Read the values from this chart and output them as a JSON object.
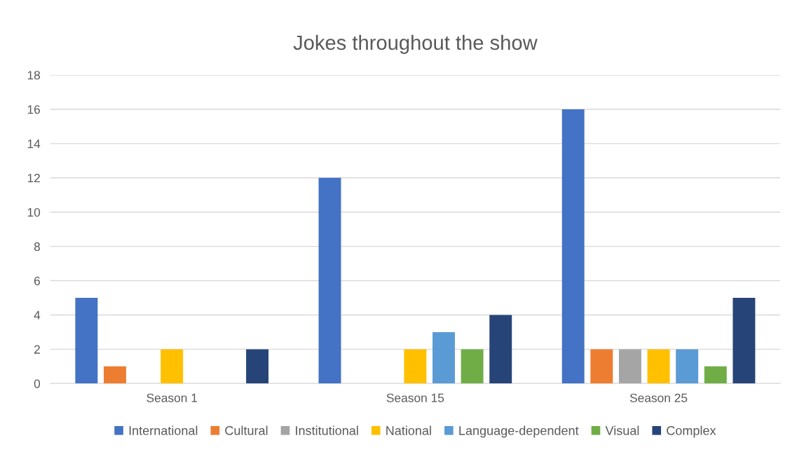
{
  "chart_data": {
    "type": "bar",
    "title": "Jokes throughout the show",
    "categories": [
      "Season 1",
      "Season 15",
      "Season 25"
    ],
    "series": [
      {
        "name": "International",
        "color": "#4472c4",
        "values": [
          5,
          12,
          16
        ]
      },
      {
        "name": "Cultural",
        "color": "#ed7d31",
        "values": [
          1,
          0,
          2
        ]
      },
      {
        "name": "Institutional",
        "color": "#a5a5a5",
        "values": [
          0,
          0,
          2
        ]
      },
      {
        "name": "National",
        "color": "#ffc000",
        "values": [
          2,
          2,
          2
        ]
      },
      {
        "name": "Language-dependent",
        "color": "#5b9bd5",
        "values": [
          0,
          3,
          2
        ]
      },
      {
        "name": "Visual",
        "color": "#70ad47",
        "values": [
          0,
          2,
          1
        ]
      },
      {
        "name": "Complex",
        "color": "#264478",
        "values": [
          2,
          4,
          5
        ]
      }
    ],
    "ylim": [
      0,
      18
    ],
    "yticks": [
      0,
      2,
      4,
      6,
      8,
      10,
      12,
      14,
      16,
      18
    ],
    "grid": "y",
    "legend": "bottom"
  }
}
